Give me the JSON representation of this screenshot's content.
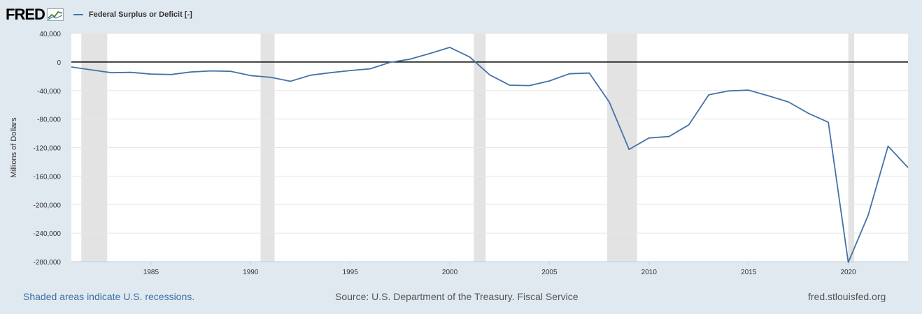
{
  "header": {
    "logo_text": "FRED",
    "legend_label": "Federal Surplus or Deficit [-]"
  },
  "footer": {
    "recession_note": "Shaded areas indicate U.S. recessions.",
    "source": "Source: U.S. Department of the Treasury. Fiscal Service",
    "site": "fred.stlouisfed.org"
  },
  "chart_data": {
    "type": "line",
    "title": "",
    "xlabel": "",
    "ylabel": "Millions of Dollars",
    "xlim": [
      1981,
      2023
    ],
    "ylim": [
      -280000,
      40000
    ],
    "x_ticks": [
      1985,
      1990,
      1995,
      2000,
      2005,
      2010,
      2015,
      2020
    ],
    "y_ticks": [
      40000,
      0,
      -40000,
      -80000,
      -120000,
      -160000,
      -200000,
      -240000,
      -280000
    ],
    "y_tick_labels": [
      "40,000",
      "0",
      "-40,000",
      "-80,000",
      "-120,000",
      "-160,000",
      "-200,000",
      "-240,000",
      "-280,000"
    ],
    "x_tick_labels": [
      "1985",
      "1990",
      "1995",
      "2000",
      "2005",
      "2010",
      "2015",
      "2020"
    ],
    "grid": true,
    "zero_line": true,
    "line_color": "#4572a7",
    "recession_color": "#e3e3e3",
    "recessions": [
      [
        1981.5,
        1982.8
      ],
      [
        1990.5,
        1991.2
      ],
      [
        2001.2,
        2001.8
      ],
      [
        2007.9,
        2009.4
      ],
      [
        2020.0,
        2020.3
      ]
    ],
    "series": [
      {
        "name": "Federal Surplus or Deficit [-]",
        "x": [
          1981,
          1982,
          1983,
          1984,
          1985,
          1986,
          1987,
          1988,
          1989,
          1990,
          1991,
          1992,
          1993,
          1994,
          1995,
          1996,
          1997,
          1998,
          1999,
          2000,
          2001,
          2002,
          2003,
          2004,
          2005,
          2006,
          2007,
          2008,
          2009,
          2010,
          2011,
          2012,
          2013,
          2014,
          2015,
          2016,
          2017,
          2018,
          2019,
          2020,
          2021,
          2022,
          2023
        ],
        "values": [
          -7000,
          -11000,
          -15000,
          -14500,
          -17000,
          -17500,
          -14000,
          -12500,
          -13000,
          -19000,
          -21500,
          -27000,
          -18500,
          -15000,
          -12000,
          -9500,
          -500,
          4000,
          12000,
          20500,
          7000,
          -18000,
          -32500,
          -33000,
          -26500,
          -16500,
          -15500,
          -56000,
          -122500,
          -106500,
          -104500,
          -88000,
          -46000,
          -40500,
          -39500,
          -47500,
          -56000,
          -72000,
          -84500,
          -281000,
          -215000,
          -118000,
          -148000
        ]
      }
    ]
  }
}
